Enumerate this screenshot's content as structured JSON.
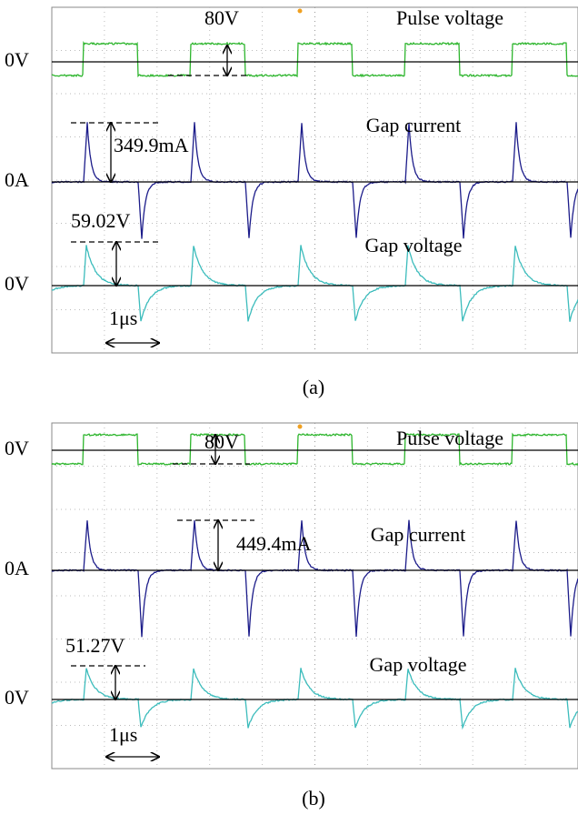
{
  "panels": [
    {
      "label": "(a)",
      "time_scale": "1μs",
      "traces": [
        {
          "name": "Pulse voltage",
          "zero_label": "0V",
          "measurement": "80V"
        },
        {
          "name": "Gap current",
          "zero_label": "0A",
          "measurement": "349.9mA"
        },
        {
          "name": "Gap voltage",
          "zero_label": "0V",
          "measurement": "59.02V"
        }
      ]
    },
    {
      "label": "(b)",
      "time_scale": "1μs",
      "traces": [
        {
          "name": "Pulse voltage",
          "zero_label": "0V",
          "measurement": "80V"
        },
        {
          "name": "Gap current",
          "zero_label": "0A",
          "measurement": "449.4mA"
        },
        {
          "name": "Gap voltage",
          "zero_label": "0V",
          "measurement": "51.27V"
        }
      ]
    }
  ]
}
